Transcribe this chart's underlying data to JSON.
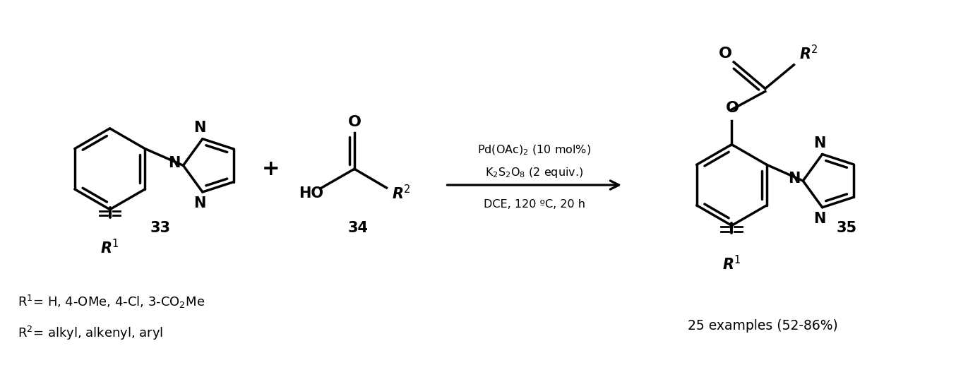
{
  "bg_color": "#ffffff",
  "figsize": [
    13.71,
    5.34
  ],
  "dpi": 100,
  "line_width": 2.5,
  "black": "#000000",
  "compound33_label": "33",
  "compound34_label": "34",
  "compound35_label": "35",
  "reagent_line1": "Pd(OAc)$_2$ (10 mol%)",
  "reagent_line2": "K$_2$S$_2$O$_8$ (2 equiv.)",
  "reagent_line3": "DCE, 120 ºC, 20 h",
  "plus_sign": "+",
  "r1_label": "R$^1$",
  "r2_label": "R$^2$",
  "footnote1": "R$^1$= H, 4-OMe, 4-Cl, 3-CO$_2$Me",
  "footnote2": "R$^2$= alkyl, alkenyl, aryl",
  "examples": "25 examples (52-86%)"
}
